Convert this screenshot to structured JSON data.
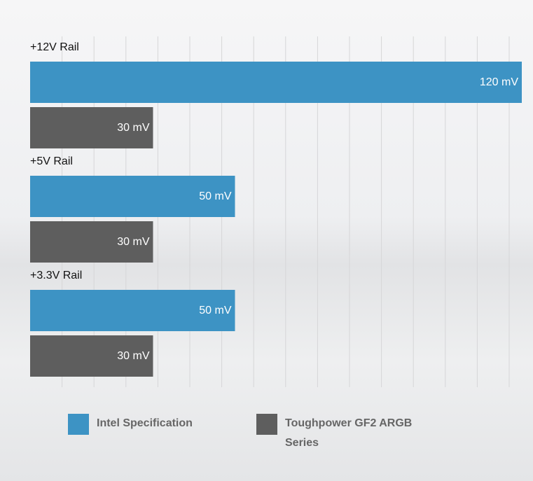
{
  "chart_data": {
    "type": "bar",
    "orientation": "horizontal",
    "categories": [
      "+12V Rail",
      "+5V Rail",
      "+3.3V Rail"
    ],
    "series": [
      {
        "name": "Intel Specification",
        "color": "#3d93c4",
        "values": [
          120,
          50,
          50
        ],
        "value_labels": [
          "120 mV",
          "50 mV",
          "50 mV"
        ]
      },
      {
        "name": "Toughpower GF2 ARGB Series",
        "color": "#5e5e5e",
        "values": [
          30,
          30,
          30
        ],
        "value_labels": [
          "30 mV",
          "30 mV",
          "30 mV"
        ]
      }
    ],
    "xlim": [
      0,
      120
    ],
    "grid": true
  }
}
